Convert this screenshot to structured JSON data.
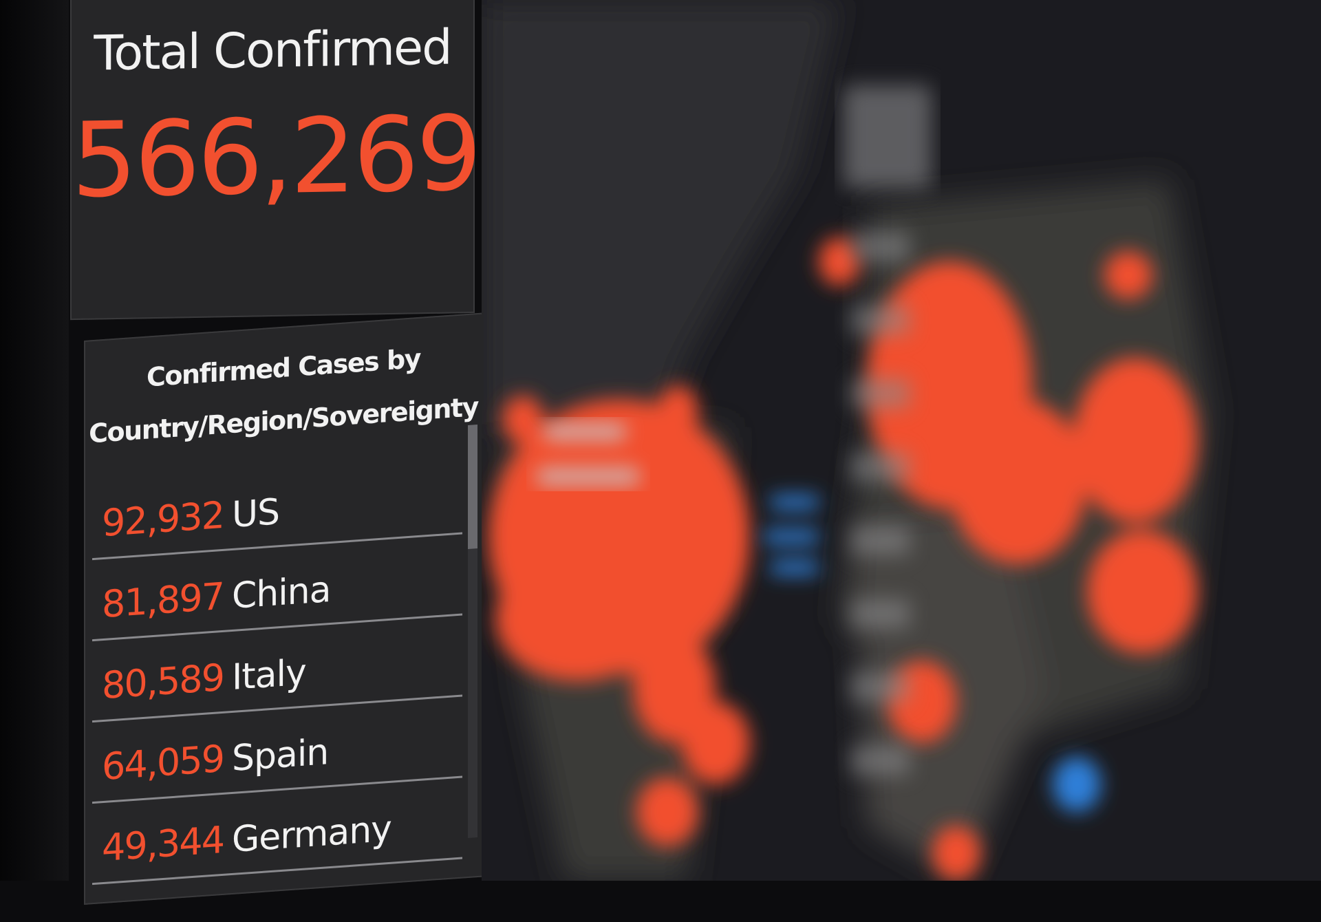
{
  "total": {
    "title": "Total Confirmed",
    "value": "566,269"
  },
  "list": {
    "title_line1": "Confirmed Cases by",
    "title_line2": "Country/Region/Sovereignty",
    "rows": [
      {
        "count": "92,932",
        "country": "US"
      },
      {
        "count": "81,897",
        "country": "China"
      },
      {
        "count": "80,589",
        "country": "Italy"
      },
      {
        "count": "64,059",
        "country": "Spain"
      },
      {
        "count": "49,344",
        "country": "Germany"
      }
    ]
  },
  "colors": {
    "accent": "#f2502f",
    "panel": "#262628",
    "map_bg": "#1b1b20",
    "land": "#3b3a38",
    "water_label": "#2f7fd8"
  }
}
